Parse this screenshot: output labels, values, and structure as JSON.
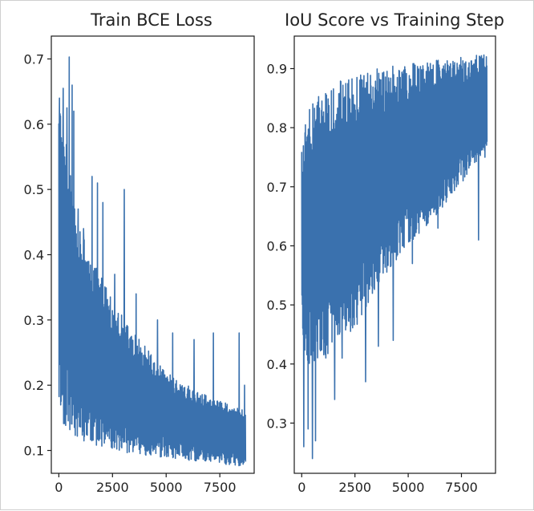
{
  "chart_data": [
    {
      "type": "line",
      "title": "Train BCE Loss",
      "xlabel": "",
      "ylabel": "",
      "xlim": [
        -350,
        9100
      ],
      "ylim": [
        0.065,
        0.735
      ],
      "xticks": [
        0,
        2500,
        5000,
        7500
      ],
      "xtick_labels": [
        "0",
        "2500",
        "5000",
        "7500"
      ],
      "yticks": [
        0.1,
        0.2,
        0.3,
        0.4,
        0.5,
        0.6,
        0.7
      ],
      "ytick_labels": [
        "0.1",
        "0.2",
        "0.3",
        "0.4",
        "0.5",
        "0.6",
        "0.7"
      ],
      "grid": false,
      "color": "#3a71ae",
      "series": [
        {
          "x_range": [
            0,
            8700
          ],
          "n_points": 900,
          "x_anchor": [
            0,
            150,
            400,
            800,
            1500,
            2500,
            3500,
            5000,
            6500,
            8700
          ],
          "upper": [
            0.63,
            0.62,
            0.56,
            0.46,
            0.4,
            0.33,
            0.28,
            0.22,
            0.19,
            0.16
          ],
          "lower": [
            0.15,
            0.14,
            0.13,
            0.12,
            0.11,
            0.1,
            0.095,
            0.088,
            0.082,
            0.075
          ],
          "spikes": [
            {
              "x": 30,
              "y": 0.64
            },
            {
              "x": 200,
              "y": 0.655
            },
            {
              "x": 380,
              "y": 0.625
            },
            {
              "x": 480,
              "y": 0.703
            },
            {
              "x": 620,
              "y": 0.66
            },
            {
              "x": 700,
              "y": 0.62
            },
            {
              "x": 900,
              "y": 0.47
            },
            {
              "x": 1150,
              "y": 0.44
            },
            {
              "x": 1550,
              "y": 0.52
            },
            {
              "x": 1800,
              "y": 0.51
            },
            {
              "x": 2050,
              "y": 0.48
            },
            {
              "x": 3050,
              "y": 0.5
            },
            {
              "x": 2600,
              "y": 0.37
            },
            {
              "x": 3600,
              "y": 0.34
            },
            {
              "x": 4600,
              "y": 0.3
            },
            {
              "x": 5300,
              "y": 0.28
            },
            {
              "x": 6300,
              "y": 0.27
            },
            {
              "x": 7200,
              "y": 0.28
            },
            {
              "x": 8400,
              "y": 0.28
            },
            {
              "x": 8650,
              "y": 0.2
            }
          ]
        }
      ]
    },
    {
      "type": "line",
      "title": "IoU Score vs Training Step",
      "xlabel": "",
      "ylabel": "",
      "xlim": [
        -350,
        9100
      ],
      "ylim": [
        0.215,
        0.955
      ],
      "xticks": [
        0,
        2500,
        5000,
        7500
      ],
      "xtick_labels": [
        "0",
        "2500",
        "5000",
        "7500"
      ],
      "yticks": [
        0.3,
        0.4,
        0.5,
        0.6,
        0.7,
        0.8,
        0.9
      ],
      "ytick_labels": [
        "0.3",
        "0.4",
        "0.5",
        "0.6",
        "0.7",
        "0.8",
        "0.9"
      ],
      "grid": false,
      "color": "#3a71ae",
      "series": [
        {
          "x_range": [
            0,
            8700
          ],
          "n_points": 900,
          "x_anchor": [
            0,
            300,
            800,
            1500,
            2500,
            3500,
            5000,
            6500,
            8700
          ],
          "upper": [
            0.78,
            0.83,
            0.86,
            0.875,
            0.89,
            0.9,
            0.91,
            0.915,
            0.925
          ],
          "lower": [
            0.44,
            0.4,
            0.4,
            0.42,
            0.46,
            0.53,
            0.6,
            0.66,
            0.76
          ],
          "spikes": [
            {
              "x": 100,
              "y": 0.26
            },
            {
              "x": 300,
              "y": 0.29
            },
            {
              "x": 500,
              "y": 0.24
            },
            {
              "x": 650,
              "y": 0.27
            },
            {
              "x": 1100,
              "y": 0.42
            },
            {
              "x": 1550,
              "y": 0.34
            },
            {
              "x": 1900,
              "y": 0.41
            },
            {
              "x": 3000,
              "y": 0.37
            },
            {
              "x": 3600,
              "y": 0.43
            },
            {
              "x": 4300,
              "y": 0.44
            },
            {
              "x": 5200,
              "y": 0.57
            },
            {
              "x": 6400,
              "y": 0.63
            },
            {
              "x": 8300,
              "y": 0.61
            },
            {
              "x": 8600,
              "y": 0.75
            }
          ]
        }
      ]
    }
  ]
}
